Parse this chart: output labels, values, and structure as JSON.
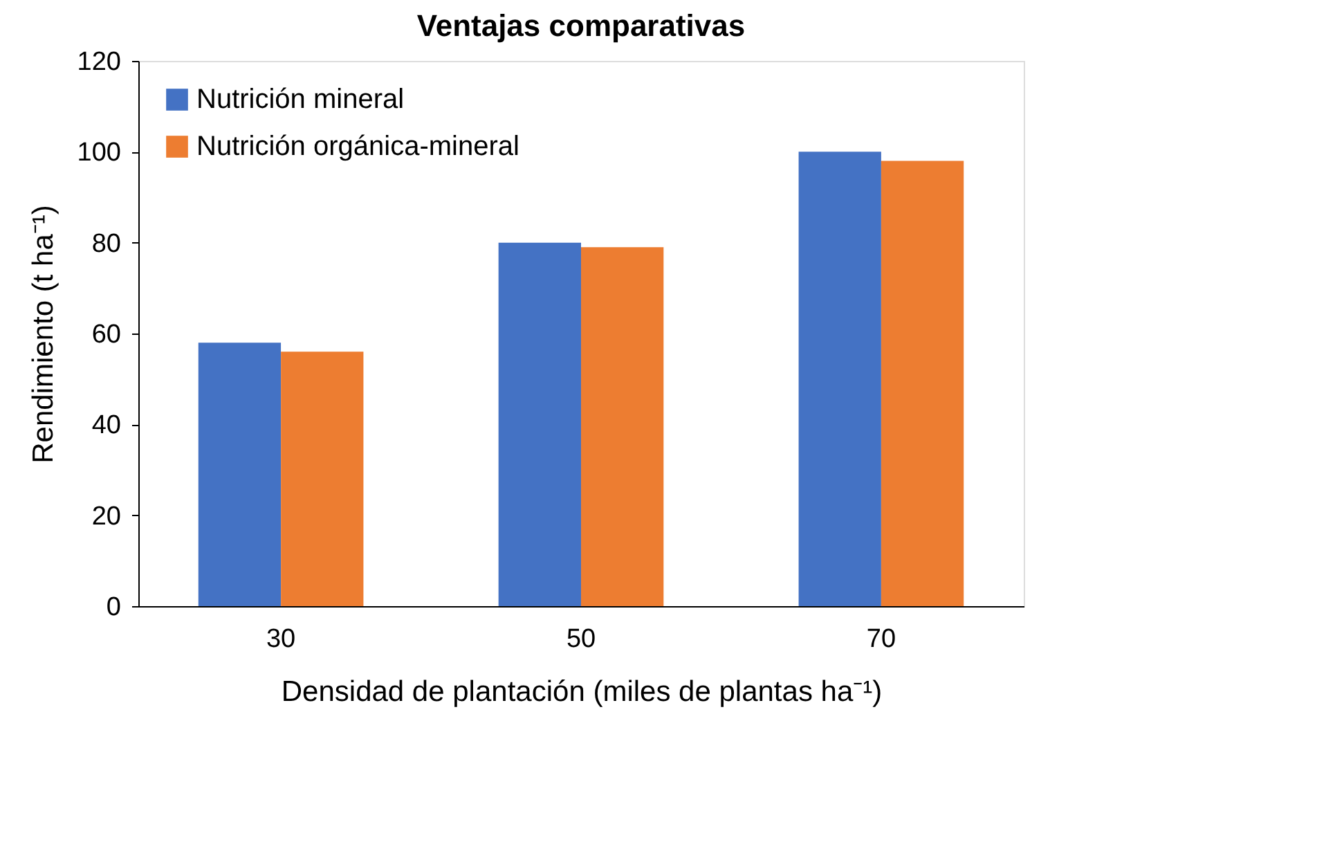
{
  "chart_data": {
    "type": "bar",
    "title": "Ventajas comparativas",
    "xlabel": "Densidad de plantación (miles de plantas ha⁻¹)",
    "ylabel": "Rendimiento (t ha⁻¹)",
    "categories": [
      "30",
      "50",
      "70"
    ],
    "series": [
      {
        "name": "Nutrición mineral",
        "color": "#4472c4",
        "values": [
          58,
          80,
          100
        ]
      },
      {
        "name": "Nutrición orgánica-mineral",
        "color": "#ed7d31",
        "values": [
          56,
          79,
          98
        ]
      }
    ],
    "ylim": [
      0,
      120
    ],
    "yticks": [
      0,
      20,
      40,
      60,
      80,
      100,
      120
    ],
    "grid": false,
    "legend": "top left"
  }
}
